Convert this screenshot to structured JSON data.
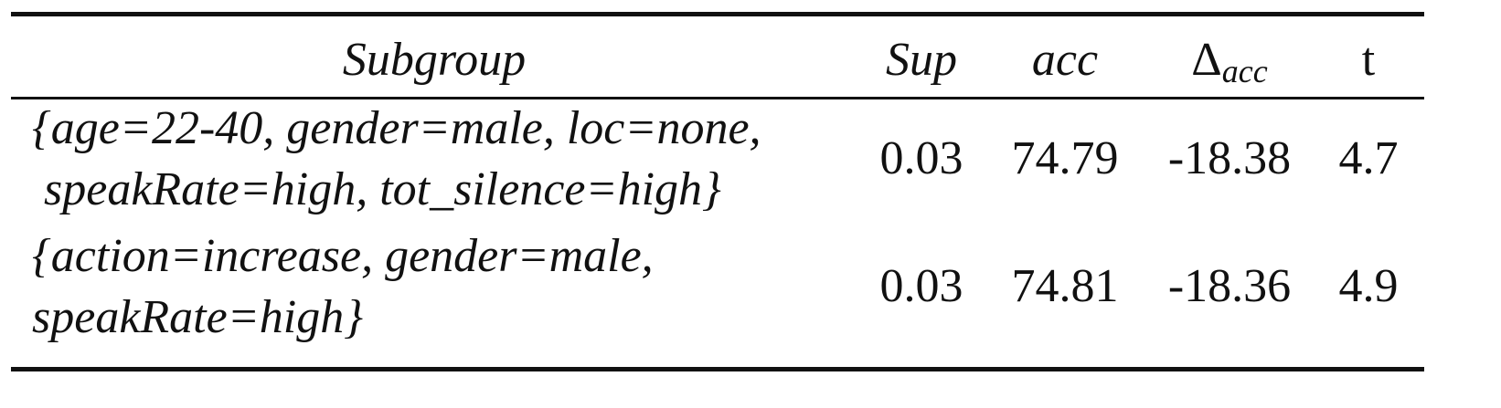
{
  "table": {
    "header": [
      "Subgroup",
      "Sup",
      "acc",
      {
        "base": "Δ",
        "sub": "acc"
      },
      "t"
    ],
    "rows": [
      {
        "subgroup": [
          "{age=22-40, gender=male, loc=none,",
          "speakRate=high, tot_silence=high}"
        ],
        "cells": [
          0.03,
          74.79,
          -18.38,
          4.7
        ]
      },
      {
        "subgroup": [
          "{action=increase, gender=male,",
          "speakRate=high}"
        ],
        "cells": [
          0.03,
          74.81,
          -18.36,
          4.9
        ]
      }
    ]
  }
}
